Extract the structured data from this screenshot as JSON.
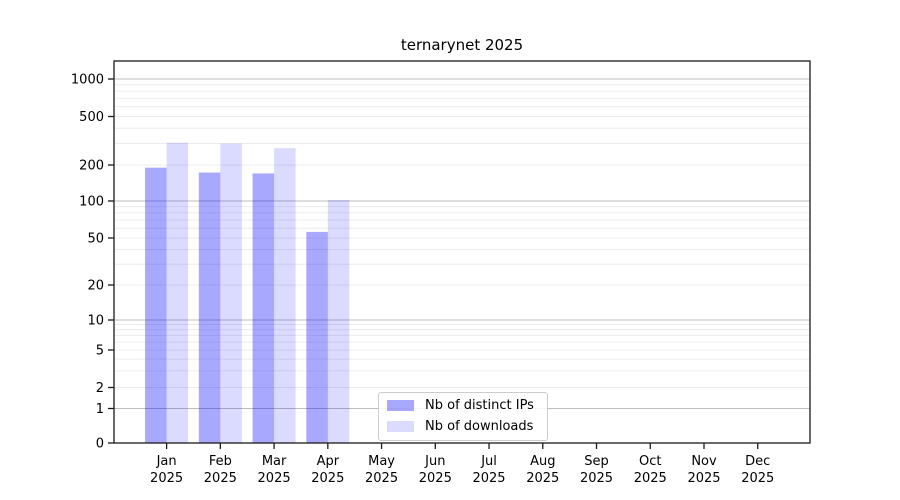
{
  "figure": {
    "title": "ternarynet 2025"
  },
  "chart_data": {
    "type": "bar",
    "title": "ternarynet 2025",
    "categories": [
      "Jan",
      "Feb",
      "Mar",
      "Apr",
      "May",
      "Jun",
      "Jul",
      "Aug",
      "Sep",
      "Oct",
      "Nov",
      "Dec"
    ],
    "category_year": "2025",
    "series": [
      {
        "name": "Nb of distinct IPs",
        "color": "rgba(0,0,255,0.34)",
        "values": [
          190,
          173,
          170,
          56,
          0,
          0,
          0,
          0,
          0,
          0,
          0,
          0
        ]
      },
      {
        "name": "Nb of downloads",
        "color": "rgba(0,0,255,0.14)",
        "values": [
          305,
          300,
          275,
          102,
          0,
          0,
          0,
          0,
          0,
          0,
          0,
          0
        ]
      }
    ],
    "y_ticks": [
      0,
      1,
      2,
      5,
      10,
      20,
      50,
      100,
      200,
      500,
      1000
    ],
    "y_scale": "asinh (log-like, linear near 0)",
    "ylim": [
      0,
      1500
    ],
    "grid": "both",
    "legend_position": "lower center"
  },
  "colors": {
    "bar_distinct_ips": "rgba(0,0,255,0.34)",
    "bar_downloads": "rgba(0,0,255,0.14)",
    "grid_major": "#bdbdbd",
    "grid_minor": "#ececec",
    "axis": "#1a1a1a",
    "text": "#000000",
    "legend_border": "#cccccc"
  }
}
